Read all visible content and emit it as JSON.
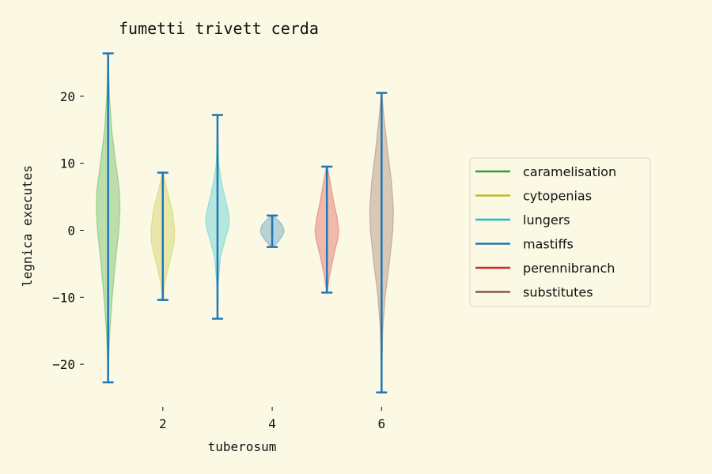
{
  "chart_data": {
    "type": "violin",
    "title": "fumetti trivett cerda",
    "xlabel": "tuberosum",
    "ylabel": "legnica executes",
    "xlim": [
      0.6,
      6.4
    ],
    "ylim": [
      -26,
      28
    ],
    "xticks": [
      2,
      4,
      6
    ],
    "yticks": [
      -20,
      -10,
      0,
      10,
      20
    ],
    "grid": false,
    "legend_position": "right",
    "series": [
      {
        "name": "caramelisation",
        "position": 1,
        "min": -22.7,
        "max": 26.4,
        "color": "#2ca02c",
        "profile": [
          [
            -22.7,
            0.01
          ],
          [
            -20,
            0.04
          ],
          [
            -15,
            0.15
          ],
          [
            -10,
            0.35
          ],
          [
            -5,
            0.6
          ],
          [
            0,
            0.9
          ],
          [
            3,
            1.0
          ],
          [
            6,
            0.95
          ],
          [
            10,
            0.65
          ],
          [
            15,
            0.3
          ],
          [
            20,
            0.12
          ],
          [
            26.4,
            0.01
          ]
        ]
      },
      {
        "name": "cytopenias",
        "position": 2,
        "min": -10.4,
        "max": 8.6,
        "color": "#bcbd22",
        "profile": [
          [
            -10.4,
            0.03
          ],
          [
            -8,
            0.15
          ],
          [
            -5,
            0.55
          ],
          [
            -2,
            0.95
          ],
          [
            0,
            1.0
          ],
          [
            3,
            0.8
          ],
          [
            6,
            0.35
          ],
          [
            8.6,
            0.04
          ]
        ]
      },
      {
        "name": "lungers",
        "position": 3,
        "min": -13.2,
        "max": 17.2,
        "color": "#17becf",
        "profile": [
          [
            -13.2,
            0.01
          ],
          [
            -8,
            0.06
          ],
          [
            -4,
            0.25
          ],
          [
            -1,
            0.7
          ],
          [
            0.5,
            0.95
          ],
          [
            2,
            1.0
          ],
          [
            4,
            0.75
          ],
          [
            7,
            0.35
          ],
          [
            10,
            0.1
          ],
          [
            14,
            0.03
          ],
          [
            17.2,
            0.005
          ]
        ]
      },
      {
        "name": "mastiffs",
        "position": 4,
        "min": -2.5,
        "max": 2.2,
        "color": "#1f77b4",
        "profile": [
          [
            -2.5,
            0.1
          ],
          [
            -1.5,
            0.6
          ],
          [
            -0.5,
            0.95
          ],
          [
            0,
            1.0
          ],
          [
            0.8,
            0.85
          ],
          [
            1.5,
            0.5
          ],
          [
            2.2,
            0.08
          ]
        ]
      },
      {
        "name": "perennibranch",
        "position": 5,
        "min": -9.3,
        "max": 9.5,
        "color": "#d62728",
        "profile": [
          [
            -9.3,
            0.03
          ],
          [
            -7,
            0.2
          ],
          [
            -4,
            0.55
          ],
          [
            -1,
            0.95
          ],
          [
            0,
            1.0
          ],
          [
            2,
            0.85
          ],
          [
            4,
            0.6
          ],
          [
            7,
            0.3
          ],
          [
            9.5,
            0.04
          ]
        ]
      },
      {
        "name": "substitutes",
        "position": 6,
        "min": -24.2,
        "max": 20.5,
        "color": "#8c564b",
        "profile": [
          [
            -24.2,
            0.01
          ],
          [
            -20,
            0.04
          ],
          [
            -15,
            0.1
          ],
          [
            -10,
            0.3
          ],
          [
            -5,
            0.65
          ],
          [
            0,
            0.95
          ],
          [
            3,
            1.0
          ],
          [
            7,
            0.85
          ],
          [
            12,
            0.5
          ],
          [
            17,
            0.2
          ],
          [
            20.5,
            0.02
          ]
        ]
      }
    ]
  }
}
